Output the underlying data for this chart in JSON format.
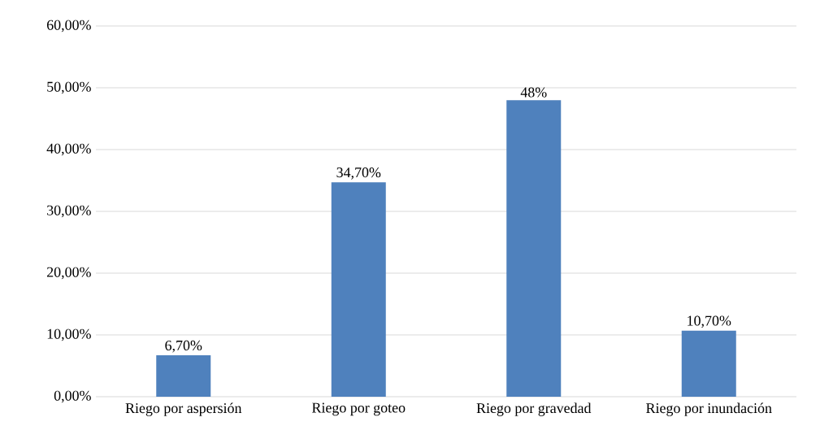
{
  "chart_data": {
    "type": "bar",
    "categories": [
      "Riego por aspersión",
      "Riego por goteo",
      "Riego por gravedad",
      "Riego por inundación"
    ],
    "values": [
      6.7,
      34.7,
      48,
      10.7
    ],
    "value_labels": [
      "6,70%",
      "34,70%",
      "48%",
      "10,70%"
    ],
    "color": "#4f81bd",
    "ylim": [
      0,
      60
    ],
    "yticks": [
      {
        "value": 0,
        "label": "0,00%"
      },
      {
        "value": 10,
        "label": "10,00%"
      },
      {
        "value": 20,
        "label": "20,00%"
      },
      {
        "value": 30,
        "label": "30,00%"
      },
      {
        "value": 40,
        "label": "40,00%"
      },
      {
        "value": 50,
        "label": "50,00%"
      },
      {
        "value": 60,
        "label": "60,00%"
      }
    ],
    "grid": "y"
  }
}
